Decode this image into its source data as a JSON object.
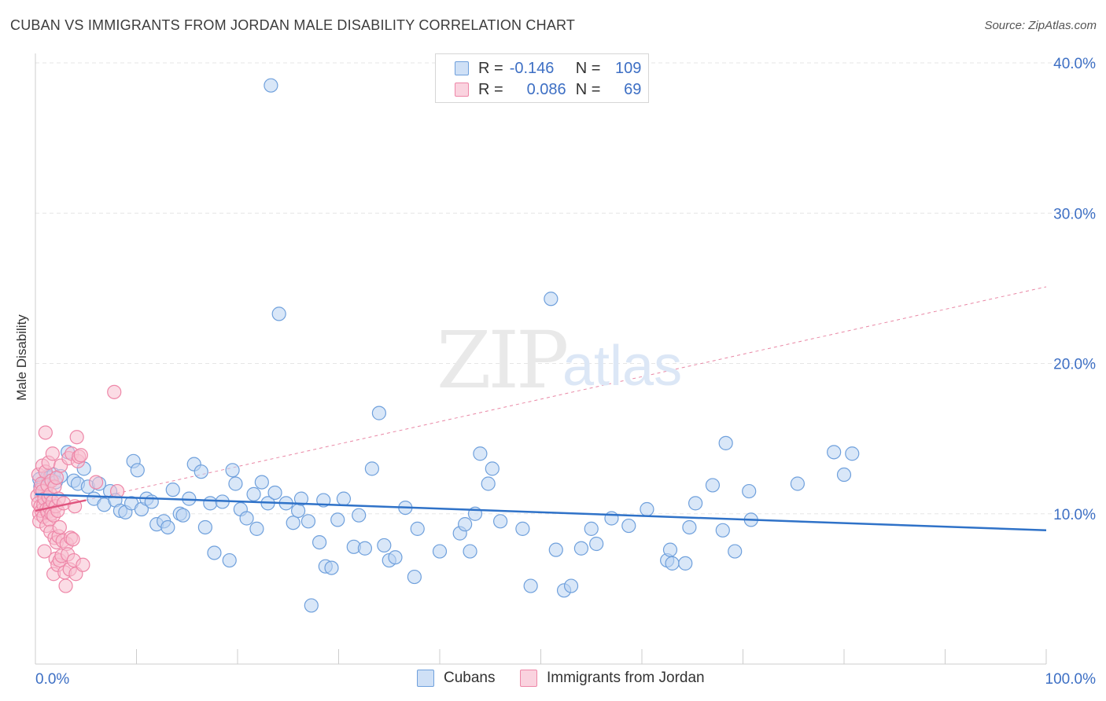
{
  "title": "CUBAN VS IMMIGRANTS FROM JORDAN MALE DISABILITY CORRELATION CHART",
  "source": "Source: ZipAtlas.com",
  "watermark": {
    "zip": "ZIP",
    "atlas": "atlas"
  },
  "stats": {
    "r_label": "R =",
    "n_label": "N =",
    "rows": [
      {
        "r": "-0.146",
        "n": "109",
        "color": "#8db4e8"
      },
      {
        "r": "0.086",
        "n": "69",
        "color": "#f4a3bc"
      }
    ]
  },
  "legend": {
    "a": "Cubans",
    "b": "Immigrants from Jordan"
  },
  "colors": {
    "blue_fill": "#b9d3f3",
    "blue_stroke": "#6fa0dc",
    "blue_line": "#2f72c8",
    "pink_fill": "#f7bfd0",
    "pink_stroke": "#ee87a8",
    "pink_line": "#e0557f",
    "grid": "#e6e6e6",
    "axis_text": "#3d6fc4"
  },
  "chart_data": {
    "type": "scatter",
    "title": "CUBAN VS IMMIGRANTS FROM JORDAN MALE DISABILITY CORRELATION CHART",
    "xlabel": "",
    "ylabel": "Male Disability",
    "xlim": [
      0,
      100
    ],
    "ylim": [
      0,
      40
    ],
    "x_tick_labels": [
      "0.0%",
      "100.0%"
    ],
    "y_ticks": [
      10,
      20,
      30,
      40
    ],
    "y_tick_labels": [
      "10.0%",
      "20.0%",
      "30.0%",
      "40.0%"
    ],
    "grid": true,
    "legend_position": "bottom",
    "series": [
      {
        "name": "Cubans",
        "r": -0.146,
        "n": 109,
        "trend": {
          "x0": 0,
          "y0": 11.3,
          "x1": 100,
          "y1": 8.9,
          "style": "solid"
        },
        "points": [
          [
            0.4,
            12.3
          ],
          [
            0.5,
            11.8
          ],
          [
            0.6,
            11.2
          ],
          [
            0.8,
            12.0
          ],
          [
            1.0,
            11.5
          ],
          [
            1.2,
            12.5
          ],
          [
            1.4,
            12.4
          ],
          [
            1.6,
            12.2
          ],
          [
            1.8,
            12.6
          ],
          [
            2.0,
            12.1
          ],
          [
            2.5,
            12.5
          ],
          [
            3.2,
            14.1
          ],
          [
            3.8,
            12.2
          ],
          [
            4.2,
            12.0
          ],
          [
            4.8,
            13.0
          ],
          [
            5.2,
            11.8
          ],
          [
            5.8,
            11.0
          ],
          [
            6.3,
            12.0
          ],
          [
            6.8,
            10.6
          ],
          [
            7.4,
            11.5
          ],
          [
            7.9,
            10.9
          ],
          [
            8.4,
            10.2
          ],
          [
            8.9,
            10.1
          ],
          [
            9.5,
            10.7
          ],
          [
            9.7,
            13.5
          ],
          [
            10.1,
            12.9
          ],
          [
            10.5,
            10.3
          ],
          [
            11.0,
            11.0
          ],
          [
            11.5,
            10.8
          ],
          [
            12.0,
            9.3
          ],
          [
            12.7,
            9.5
          ],
          [
            13.1,
            9.1
          ],
          [
            13.6,
            11.6
          ],
          [
            14.3,
            10.0
          ],
          [
            14.6,
            9.9
          ],
          [
            15.2,
            11.0
          ],
          [
            15.7,
            13.3
          ],
          [
            16.4,
            12.8
          ],
          [
            16.8,
            9.1
          ],
          [
            17.3,
            10.7
          ],
          [
            17.7,
            7.4
          ],
          [
            18.5,
            10.8
          ],
          [
            19.2,
            6.9
          ],
          [
            19.5,
            12.9
          ],
          [
            19.8,
            12.0
          ],
          [
            20.3,
            10.3
          ],
          [
            20.9,
            9.7
          ],
          [
            21.6,
            11.3
          ],
          [
            21.9,
            9.0
          ],
          [
            22.4,
            12.1
          ],
          [
            23.0,
            10.7
          ],
          [
            23.3,
            38.5
          ],
          [
            23.7,
            11.4
          ],
          [
            24.1,
            23.3
          ],
          [
            24.8,
            10.7
          ],
          [
            25.5,
            9.4
          ],
          [
            26.0,
            10.2
          ],
          [
            26.3,
            11.0
          ],
          [
            27.0,
            9.5
          ],
          [
            27.3,
            3.9
          ],
          [
            28.1,
            8.1
          ],
          [
            28.5,
            10.9
          ],
          [
            28.7,
            6.5
          ],
          [
            29.3,
            6.4
          ],
          [
            29.9,
            9.6
          ],
          [
            30.5,
            11.0
          ],
          [
            31.5,
            7.8
          ],
          [
            32.0,
            9.9
          ],
          [
            32.6,
            7.7
          ],
          [
            33.3,
            13.0
          ],
          [
            34.0,
            16.7
          ],
          [
            34.5,
            7.9
          ],
          [
            35.0,
            6.9
          ],
          [
            35.6,
            7.1
          ],
          [
            36.6,
            10.4
          ],
          [
            37.5,
            5.8
          ],
          [
            37.8,
            9.0
          ],
          [
            40.0,
            7.5
          ],
          [
            42.0,
            8.7
          ],
          [
            42.5,
            9.3
          ],
          [
            43.0,
            7.5
          ],
          [
            43.5,
            10.0
          ],
          [
            44.0,
            14.0
          ],
          [
            44.8,
            12.0
          ],
          [
            45.2,
            13.0
          ],
          [
            46.0,
            9.5
          ],
          [
            48.2,
            9.0
          ],
          [
            49.0,
            5.2
          ],
          [
            51.0,
            24.3
          ],
          [
            51.5,
            7.6
          ],
          [
            52.3,
            4.9
          ],
          [
            53.0,
            5.2
          ],
          [
            54.0,
            7.7
          ],
          [
            55.0,
            9.0
          ],
          [
            55.5,
            8.0
          ],
          [
            57.0,
            9.7
          ],
          [
            58.7,
            9.2
          ],
          [
            60.5,
            10.3
          ],
          [
            62.5,
            6.9
          ],
          [
            62.8,
            7.6
          ],
          [
            63.0,
            6.7
          ],
          [
            64.3,
            6.7
          ],
          [
            64.7,
            9.1
          ],
          [
            65.3,
            10.7
          ],
          [
            67.0,
            11.9
          ],
          [
            68.0,
            8.9
          ],
          [
            68.3,
            14.7
          ],
          [
            69.2,
            7.5
          ],
          [
            70.6,
            11.5
          ],
          [
            70.8,
            9.6
          ],
          [
            75.4,
            12.0
          ],
          [
            79.0,
            14.1
          ],
          [
            80.0,
            12.6
          ],
          [
            80.8,
            14.0
          ]
        ]
      },
      {
        "name": "Immigrants from Jordan",
        "r": 0.086,
        "n": 69,
        "trend": {
          "x0": 0,
          "y0": 10.2,
          "x1": 5,
          "y1": 10.9,
          "style": "solid",
          "ext_x1": 100,
          "ext_y1": 25.1,
          "ext_style": "dashed"
        },
        "points": [
          [
            0.2,
            11.2
          ],
          [
            0.3,
            10.7
          ],
          [
            0.3,
            12.6
          ],
          [
            0.4,
            10.0
          ],
          [
            0.4,
            9.5
          ],
          [
            0.5,
            11.6
          ],
          [
            0.5,
            10.5
          ],
          [
            0.6,
            12.0
          ],
          [
            0.6,
            10.2
          ],
          [
            0.7,
            13.2
          ],
          [
            0.7,
            11.5
          ],
          [
            0.8,
            10.6
          ],
          [
            0.8,
            9.8
          ],
          [
            0.9,
            11.0
          ],
          [
            0.9,
            7.5
          ],
          [
            1.0,
            15.4
          ],
          [
            1.0,
            12.8
          ],
          [
            1.1,
            10.3
          ],
          [
            1.1,
            9.2
          ],
          [
            1.2,
            11.9
          ],
          [
            1.2,
            10.1
          ],
          [
            1.3,
            13.4
          ],
          [
            1.3,
            11.1
          ],
          [
            1.4,
            10.4
          ],
          [
            1.4,
            9.6
          ],
          [
            1.5,
            11.3
          ],
          [
            1.5,
            8.8
          ],
          [
            1.6,
            12.2
          ],
          [
            1.6,
            10.0
          ],
          [
            1.7,
            14.0
          ],
          [
            1.7,
            10.8
          ],
          [
            1.8,
            9.9
          ],
          [
            1.8,
            6.0
          ],
          [
            1.9,
            11.8
          ],
          [
            1.9,
            8.4
          ],
          [
            2.0,
            10.5
          ],
          [
            2.0,
            7.0
          ],
          [
            2.1,
            12.4
          ],
          [
            2.1,
            8.1
          ],
          [
            2.2,
            10.2
          ],
          [
            2.2,
            6.6
          ],
          [
            2.3,
            11.0
          ],
          [
            2.3,
            8.5
          ],
          [
            2.4,
            9.1
          ],
          [
            2.4,
            6.9
          ],
          [
            2.5,
            13.2
          ],
          [
            2.6,
            7.2
          ],
          [
            2.7,
            8.2
          ],
          [
            2.8,
            10.7
          ],
          [
            2.9,
            6.1
          ],
          [
            3.0,
            5.2
          ],
          [
            3.1,
            8.0
          ],
          [
            3.2,
            7.3
          ],
          [
            3.3,
            13.7
          ],
          [
            3.4,
            6.3
          ],
          [
            3.5,
            8.4
          ],
          [
            3.6,
            14.0
          ],
          [
            3.7,
            8.3
          ],
          [
            3.8,
            6.9
          ],
          [
            3.9,
            10.5
          ],
          [
            4.0,
            6.0
          ],
          [
            4.1,
            15.1
          ],
          [
            4.2,
            13.5
          ],
          [
            4.3,
            13.8
          ],
          [
            4.5,
            13.9
          ],
          [
            4.7,
            6.6
          ],
          [
            6.0,
            12.1
          ],
          [
            7.8,
            18.1
          ],
          [
            8.1,
            11.5
          ]
        ]
      }
    ]
  }
}
